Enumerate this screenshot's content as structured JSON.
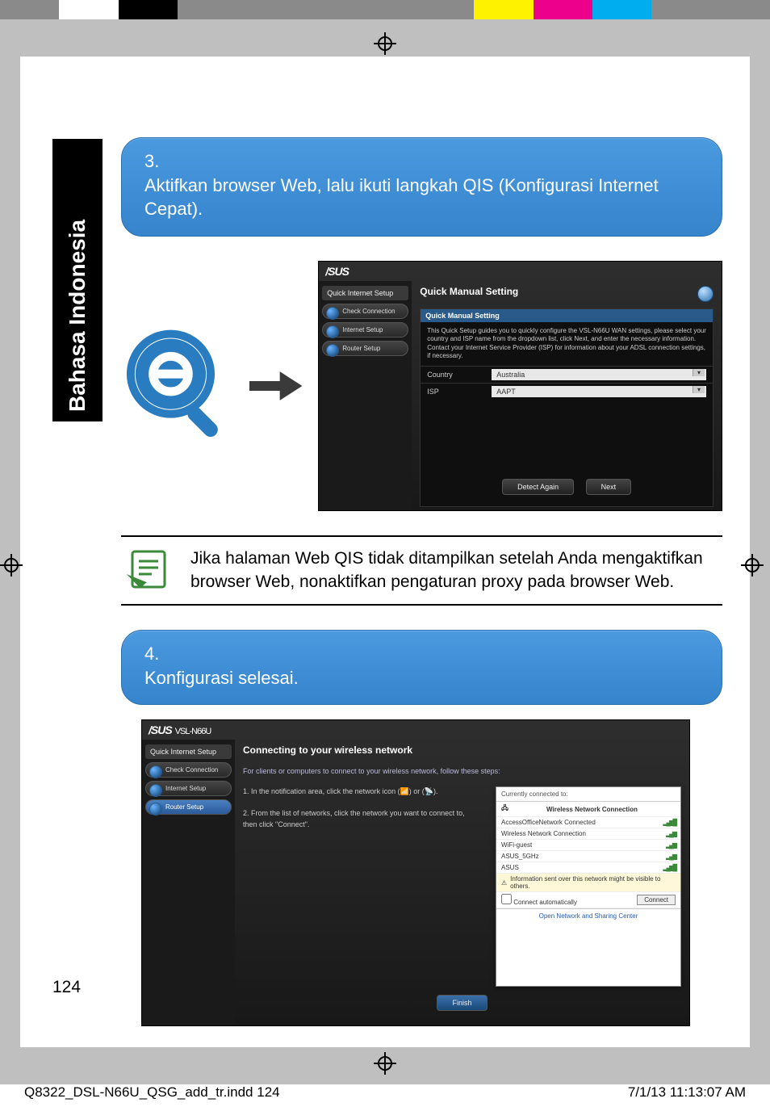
{
  "colorbar": [
    "#8a8a8a",
    "#ffffff",
    "#000000",
    "#8a8a8a",
    "#8a8a8a",
    "#8a8a8a",
    "#8a8a8a",
    "#8a8a8a",
    "#fff200",
    "#ec008c",
    "#00aeef",
    "#8a8a8a",
    "#8a8a8a"
  ],
  "side_tab": "Bahasa Indonesia",
  "step3": {
    "num": "3.",
    "text": "Aktifkan browser Web, lalu ikuti langkah QIS (Konfigurasi Internet Cepat)."
  },
  "step4": {
    "num": "4.",
    "text": "Konfigurasi selesai."
  },
  "note_text": "Jika halaman Web QIS tidak ditampilkan setelah Anda mengaktifkan browser Web, nonaktifkan pengaturan proxy pada browser Web.",
  "page_number": "124",
  "footer_file": "Q8322_DSL-N66U_QSG_add_tr.indd   124",
  "footer_time": "7/1/13   11:13:07 AM",
  "router1": {
    "brand": "/SUS",
    "sidebar_title": "Quick Internet Setup",
    "items": [
      "Check Connection",
      "Internet Setup",
      "Router Setup"
    ],
    "panel_title": "Quick Manual Setting",
    "sub_header": "Quick Manual Setting",
    "sub_desc": "This Quick Setup guides you to quickly configure the VSL-N66U WAN settings, please select your country and ISP name from the dropdown list, click Next, and enter the necessary information. Contact your Internet Service Provider (ISP) for information about your ADSL connection settings, if necessary.",
    "country_label": "Country",
    "country_value": "Australia",
    "isp_label": "ISP",
    "isp_value": "AAPT",
    "btn_detect": "Detect Again",
    "btn_next": "Next"
  },
  "router2": {
    "brand": "/SUS",
    "model": "VSL-N66U",
    "sidebar_title": "Quick Internet Setup",
    "items": [
      "Check Connection",
      "Internet Setup",
      "Router Setup"
    ],
    "panel_title": "Connecting to your wireless network",
    "intro": "For clients or computers to connect to your wireless network, follow these steps:",
    "steps_1": "1. In the notification area, click the network icon (📶) or (📡).",
    "steps_2": "2. From the list of networks, click the network you want to connect to, then click \"Connect\".",
    "btn_finish": "Finish",
    "popup": {
      "header": "Currently connected to:",
      "wired_label": "Wireless Network Connection",
      "networks": [
        {
          "name": "AccessOfficeNetwork  Connected",
          "sig": "▂▄▆█"
        },
        {
          "name": "Wireless Network Connection",
          "sig": "▂▄▆"
        },
        {
          "name": "WiFi-guest",
          "sig": "▂▄▆"
        },
        {
          "name": "ASUS_5GHz",
          "sig": "▂▄▆"
        },
        {
          "name": "ASUS",
          "sig": "▂▄▆█"
        }
      ],
      "info": "Information sent over this network might be visible to others.",
      "auto": "Connect automatically",
      "connect": "Connect",
      "footer": "Open Network and Sharing Center"
    }
  },
  "style": {
    "bubble_bg_top": "#4b9ae0",
    "bubble_bg_bottom": "#3584cc",
    "bubble_border": "#2a6fb0",
    "bubble_text": "#ffffff",
    "note_icon_stroke": "#3a8a3a",
    "mag_color": "#2a7cc0",
    "arrow_color": "#3a3a3a"
  }
}
